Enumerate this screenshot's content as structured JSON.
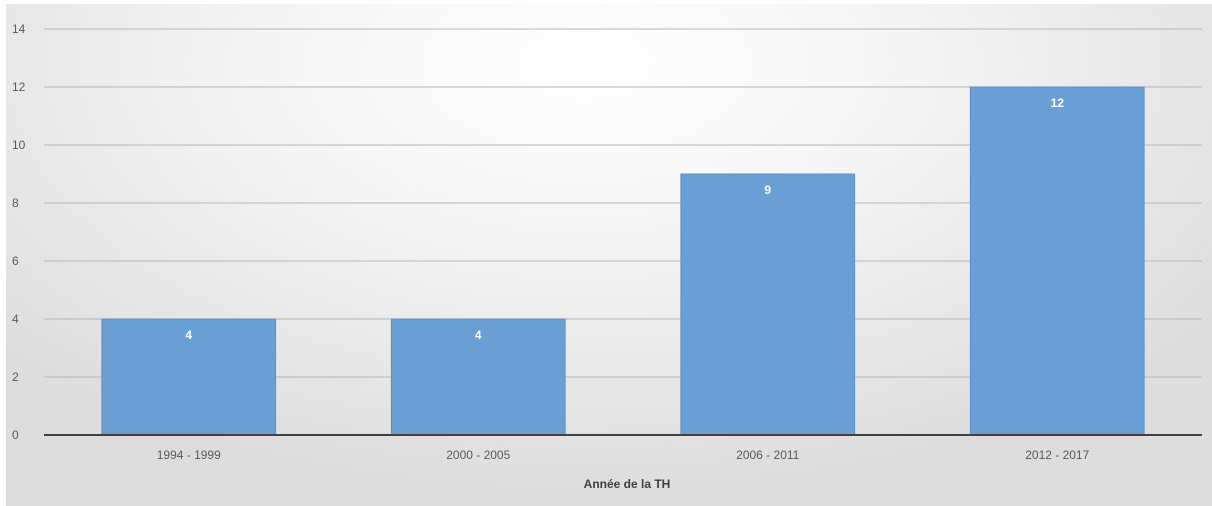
{
  "chart_data": {
    "type": "bar",
    "categories": [
      "1994 - 1999",
      "2000 - 2005",
      "2006 - 2011",
      "2012 - 2017"
    ],
    "values": [
      4,
      4,
      9,
      12
    ],
    "data_labels": [
      "4",
      "4",
      "9",
      "12"
    ],
    "title": "",
    "xlabel": "Année de la TH",
    "ylabel": "",
    "ylim": [
      0,
      14
    ],
    "yticks": [
      0,
      2,
      4,
      6,
      8,
      10,
      12,
      14
    ],
    "ytick_labels": [
      "0",
      "2",
      "4",
      "6",
      "8",
      "10",
      "12",
      "14"
    ],
    "grid": true,
    "legend": "none",
    "colors": {
      "bar": "#6a9fd6",
      "bar_edge": "#5b8fc9",
      "gridline": "#b5b5b5",
      "axis": "#404040",
      "data_label": "#ffffff"
    }
  }
}
